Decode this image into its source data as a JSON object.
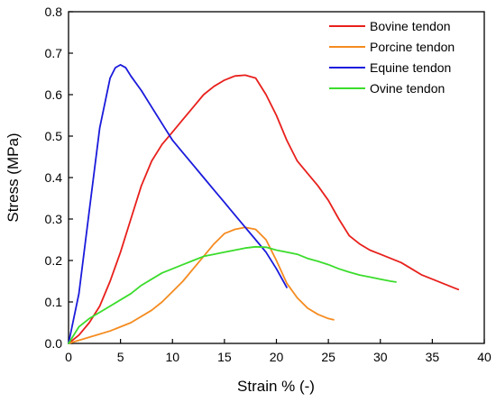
{
  "chart_data": {
    "type": "line",
    "xlabel": "Strain % (-)",
    "ylabel": "Stress (MPa)",
    "xlim": [
      0,
      40
    ],
    "ylim": [
      0,
      0.8
    ],
    "xticks": [
      0,
      5,
      10,
      15,
      20,
      25,
      30,
      35,
      40
    ],
    "yticks": [
      0.0,
      0.1,
      0.2,
      0.3,
      0.4,
      0.5,
      0.6,
      0.7,
      0.8
    ],
    "xtick_labels": [
      "0",
      "5",
      "10",
      "15",
      "20",
      "25",
      "30",
      "35",
      "40"
    ],
    "ytick_labels": [
      "0.0",
      "0.1",
      "0.2",
      "0.3",
      "0.4",
      "0.5",
      "0.6",
      "0.7",
      "0.8"
    ],
    "grid": false,
    "legend_position": "top-right",
    "series": [
      {
        "name": "Bovine tendon",
        "color": "#e8201c",
        "x": [
          0,
          1,
          2,
          3,
          4,
          5,
          6,
          7,
          8,
          9,
          10,
          11,
          12,
          13,
          14,
          15,
          16,
          17,
          18,
          19,
          20,
          21,
          22,
          23,
          24,
          25,
          26,
          27,
          28,
          29,
          30,
          31,
          32,
          33,
          34,
          35,
          36,
          37,
          37.5
        ],
        "y": [
          0.0,
          0.02,
          0.05,
          0.09,
          0.15,
          0.22,
          0.3,
          0.38,
          0.44,
          0.48,
          0.51,
          0.54,
          0.57,
          0.6,
          0.62,
          0.635,
          0.645,
          0.647,
          0.64,
          0.6,
          0.55,
          0.49,
          0.44,
          0.41,
          0.38,
          0.345,
          0.3,
          0.26,
          0.24,
          0.225,
          0.215,
          0.205,
          0.195,
          0.18,
          0.165,
          0.155,
          0.145,
          0.135,
          0.13
        ]
      },
      {
        "name": "Porcine tendon",
        "color": "#f58b1f",
        "x": [
          0,
          2,
          4,
          6,
          8,
          9,
          10,
          11,
          12,
          13,
          14,
          15,
          16,
          17,
          18,
          19,
          20,
          21,
          22,
          23,
          24,
          25,
          25.5
        ],
        "y": [
          0.0,
          0.015,
          0.03,
          0.05,
          0.08,
          0.1,
          0.125,
          0.15,
          0.18,
          0.21,
          0.24,
          0.265,
          0.275,
          0.28,
          0.275,
          0.25,
          0.2,
          0.145,
          0.11,
          0.085,
          0.07,
          0.06,
          0.057
        ]
      },
      {
        "name": "Equine tendon",
        "color": "#1a1adc",
        "x": [
          0,
          1,
          2,
          3,
          4,
          4.5,
          5,
          5.5,
          6,
          7,
          8,
          9,
          10,
          11,
          12,
          13,
          14,
          15,
          16,
          17,
          18,
          19,
          20,
          21
        ],
        "y": [
          0.0,
          0.12,
          0.32,
          0.52,
          0.64,
          0.665,
          0.672,
          0.665,
          0.645,
          0.61,
          0.57,
          0.53,
          0.49,
          0.46,
          0.43,
          0.4,
          0.37,
          0.34,
          0.31,
          0.28,
          0.25,
          0.22,
          0.18,
          0.135
        ]
      },
      {
        "name": "Ovine tendon",
        "color": "#3bdc2c",
        "x": [
          0,
          1,
          2,
          3,
          4,
          5,
          6,
          7,
          8,
          9,
          10,
          11,
          12,
          13,
          14,
          15,
          16,
          17,
          18,
          19,
          20,
          21,
          22,
          23,
          24,
          25,
          26,
          27,
          28,
          29,
          30,
          31,
          31.5
        ],
        "y": [
          0.0,
          0.04,
          0.06,
          0.075,
          0.09,
          0.105,
          0.12,
          0.14,
          0.155,
          0.17,
          0.18,
          0.19,
          0.2,
          0.21,
          0.215,
          0.22,
          0.225,
          0.23,
          0.233,
          0.232,
          0.225,
          0.22,
          0.215,
          0.205,
          0.198,
          0.19,
          0.18,
          0.172,
          0.165,
          0.16,
          0.155,
          0.15,
          0.148
        ]
      }
    ]
  }
}
